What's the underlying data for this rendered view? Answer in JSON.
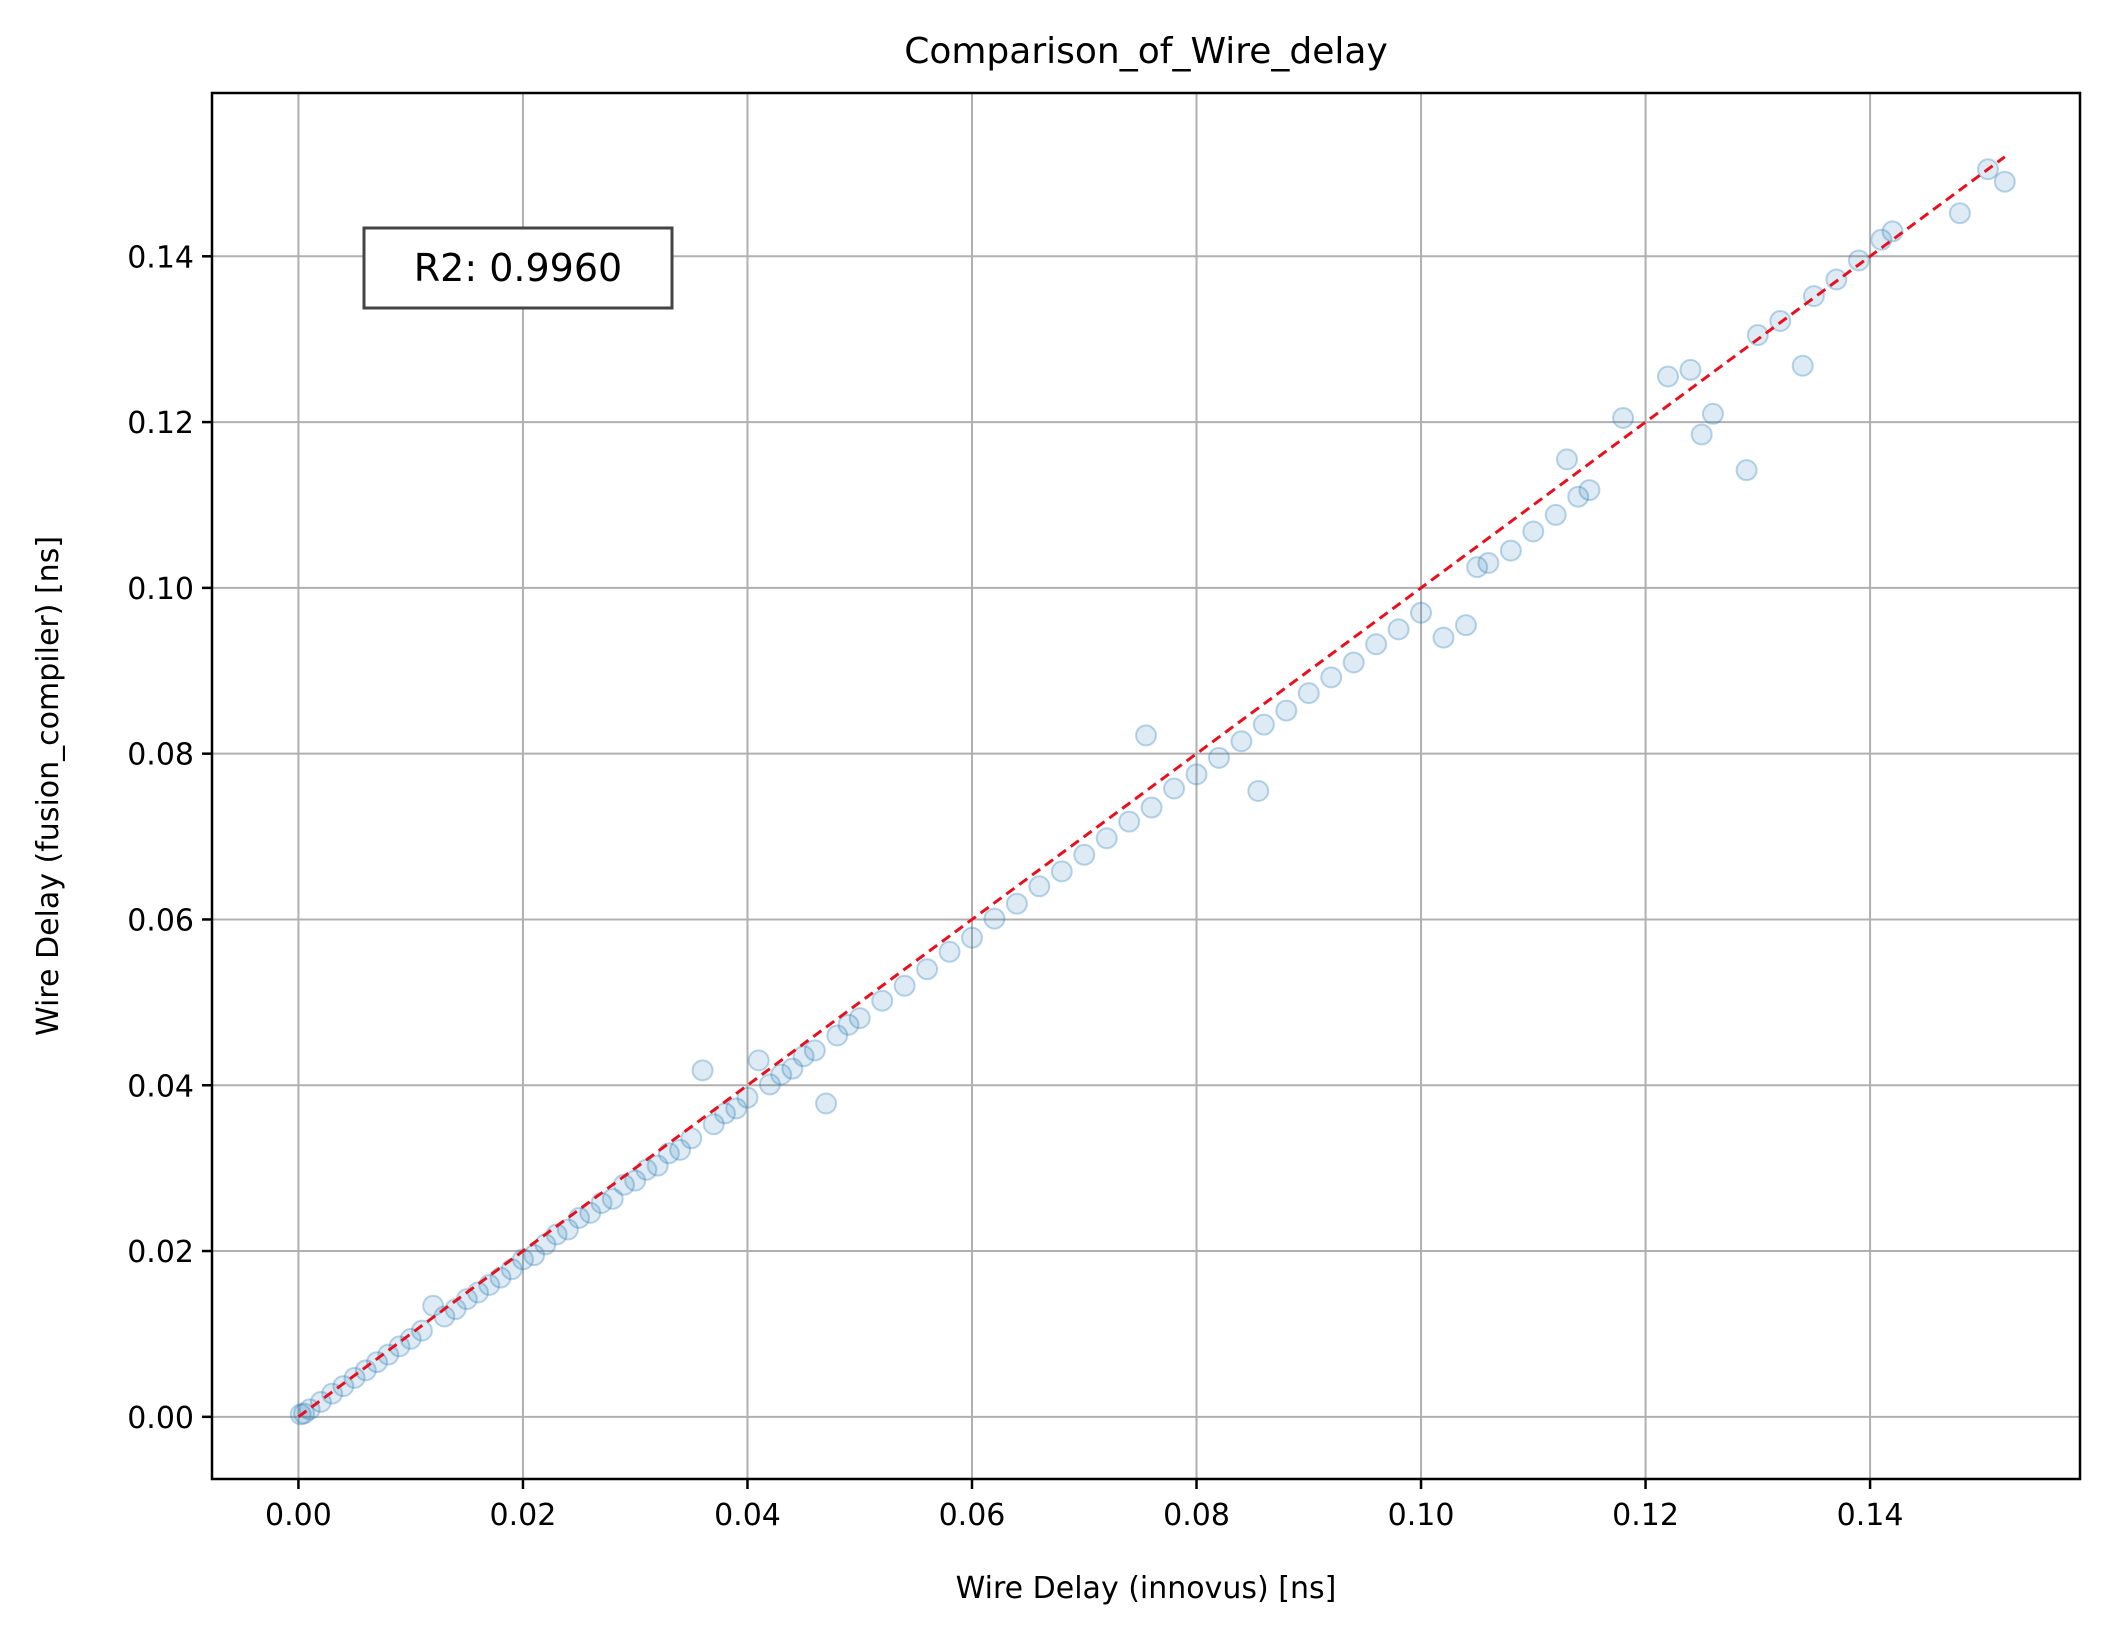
{
  "chart_data": {
    "type": "scatter",
    "title": "Comparison_of_Wire_delay",
    "xlabel": "Wire Delay (innovus) [ns]",
    "ylabel": "Wire Delay (fusion_compiler) [ns]",
    "xlim": [
      -0.0077,
      0.1587
    ],
    "ylim": [
      -0.0075,
      0.1597
    ],
    "xticks": [
      0.0,
      0.02,
      0.04,
      0.06,
      0.08,
      0.1,
      0.12,
      0.14
    ],
    "yticks": [
      0.0,
      0.02,
      0.04,
      0.06,
      0.08,
      0.1,
      0.12,
      0.14
    ],
    "xtick_labels": [
      "0.00",
      "0.02",
      "0.04",
      "0.06",
      "0.08",
      "0.10",
      "0.12",
      "0.14"
    ],
    "ytick_labels": [
      "0.00",
      "0.02",
      "0.04",
      "0.06",
      "0.08",
      "0.10",
      "0.12",
      "0.14"
    ],
    "grid": true,
    "point_color": "#1f77b4",
    "point_alpha": 0.15,
    "reference_line": {
      "style": "dashed",
      "color": "#e8101e",
      "x": [
        0.0,
        0.152
      ],
      "y": [
        0.0,
        0.152
      ]
    },
    "annotation": "R2: 0.9960",
    "points": [
      [
        0.0002,
        0.0003
      ],
      [
        0.0005,
        0.0004
      ],
      [
        0.001,
        0.0009
      ],
      [
        0.002,
        0.0018
      ],
      [
        0.003,
        0.0028
      ],
      [
        0.004,
        0.0037
      ],
      [
        0.005,
        0.0047
      ],
      [
        0.006,
        0.0056
      ],
      [
        0.007,
        0.0066
      ],
      [
        0.008,
        0.0075
      ],
      [
        0.009,
        0.0085
      ],
      [
        0.01,
        0.0094
      ],
      [
        0.011,
        0.0104
      ],
      [
        0.012,
        0.0134
      ],
      [
        0.013,
        0.0121
      ],
      [
        0.014,
        0.013
      ],
      [
        0.015,
        0.0142
      ],
      [
        0.016,
        0.015
      ],
      [
        0.017,
        0.0159
      ],
      [
        0.018,
        0.0168
      ],
      [
        0.019,
        0.0178
      ],
      [
        0.02,
        0.019
      ],
      [
        0.021,
        0.0195
      ],
      [
        0.022,
        0.0208
      ],
      [
        0.023,
        0.022
      ],
      [
        0.024,
        0.0226
      ],
      [
        0.025,
        0.024
      ],
      [
        0.026,
        0.0246
      ],
      [
        0.027,
        0.0258
      ],
      [
        0.028,
        0.0263
      ],
      [
        0.029,
        0.028
      ],
      [
        0.03,
        0.0285
      ],
      [
        0.031,
        0.0298
      ],
      [
        0.032,
        0.0303
      ],
      [
        0.033,
        0.0318
      ],
      [
        0.034,
        0.0322
      ],
      [
        0.035,
        0.0336
      ],
      [
        0.036,
        0.0418
      ],
      [
        0.037,
        0.0353
      ],
      [
        0.038,
        0.0366
      ],
      [
        0.039,
        0.0372
      ],
      [
        0.04,
        0.0385
      ],
      [
        0.041,
        0.043
      ],
      [
        0.042,
        0.0401
      ],
      [
        0.043,
        0.0413
      ],
      [
        0.044,
        0.042
      ],
      [
        0.045,
        0.0435
      ],
      [
        0.046,
        0.0442
      ],
      [
        0.047,
        0.0378
      ],
      [
        0.048,
        0.046
      ],
      [
        0.049,
        0.0473
      ],
      [
        0.05,
        0.0481
      ],
      [
        0.052,
        0.0502
      ],
      [
        0.054,
        0.052
      ],
      [
        0.056,
        0.054
      ],
      [
        0.058,
        0.0561
      ],
      [
        0.06,
        0.0578
      ],
      [
        0.062,
        0.0601
      ],
      [
        0.064,
        0.0619
      ],
      [
        0.066,
        0.064
      ],
      [
        0.068,
        0.0658
      ],
      [
        0.07,
        0.0678
      ],
      [
        0.072,
        0.0698
      ],
      [
        0.074,
        0.0718
      ],
      [
        0.0755,
        0.0822
      ],
      [
        0.076,
        0.0735
      ],
      [
        0.078,
        0.0758
      ],
      [
        0.08,
        0.0775
      ],
      [
        0.082,
        0.0795
      ],
      [
        0.084,
        0.0815
      ],
      [
        0.0855,
        0.0755
      ],
      [
        0.086,
        0.0835
      ],
      [
        0.088,
        0.0852
      ],
      [
        0.09,
        0.0873
      ],
      [
        0.092,
        0.0892
      ],
      [
        0.094,
        0.091
      ],
      [
        0.096,
        0.0932
      ],
      [
        0.098,
        0.095
      ],
      [
        0.1,
        0.097
      ],
      [
        0.102,
        0.094
      ],
      [
        0.104,
        0.0955
      ],
      [
        0.105,
        0.1025
      ],
      [
        0.106,
        0.103
      ],
      [
        0.108,
        0.1045
      ],
      [
        0.11,
        0.1068
      ],
      [
        0.112,
        0.1088
      ],
      [
        0.113,
        0.1155
      ],
      [
        0.114,
        0.111
      ],
      [
        0.115,
        0.1118
      ],
      [
        0.118,
        0.1205
      ],
      [
        0.122,
        0.1255
      ],
      [
        0.124,
        0.1263
      ],
      [
        0.125,
        0.1185
      ],
      [
        0.126,
        0.121
      ],
      [
        0.129,
        0.1142
      ],
      [
        0.13,
        0.1305
      ],
      [
        0.132,
        0.1322
      ],
      [
        0.134,
        0.1268
      ],
      [
        0.135,
        0.1352
      ],
      [
        0.137,
        0.1372
      ],
      [
        0.139,
        0.1395
      ],
      [
        0.141,
        0.142
      ],
      [
        0.142,
        0.143
      ],
      [
        0.148,
        0.1452
      ],
      [
        0.1505,
        0.1505
      ],
      [
        0.152,
        0.149
      ]
    ]
  }
}
